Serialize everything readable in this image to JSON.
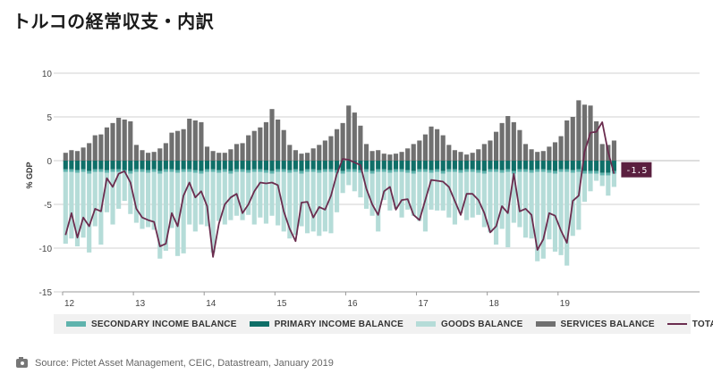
{
  "title": "トルコの経常収支・内訳",
  "source_text": "Source: Pictet Asset Management, CEIC, Datastream, January 2019",
  "colors": {
    "secondary": "#5fb3ad",
    "primary": "#0f6f68",
    "goods": "#b5dcd8",
    "services": "#707070",
    "total": "#6b2d4f",
    "grid": "#d0d0d0",
    "badge": "#5a1f3f"
  },
  "legend": [
    {
      "key": "secondary",
      "label": "SECONDARY INCOME BALANCE"
    },
    {
      "key": "primary",
      "label": "PRIMARY INCOME BALANCE"
    },
    {
      "key": "goods",
      "label": "GOODS BALANCE"
    },
    {
      "key": "services",
      "label": "SERVICES BALANCE"
    },
    {
      "key": "total",
      "label": "TOTAL"
    }
  ],
  "chart_data": {
    "type": "bar",
    "stacked": true,
    "ylabel": "% GDP",
    "ylim": [
      -15,
      10
    ],
    "yticks": [
      10,
      5,
      0,
      -5,
      -10,
      -15
    ],
    "xlim": [
      2012,
      2021
    ],
    "x_ticks": [
      {
        "value": 2012,
        "label": "12"
      },
      {
        "value": 2013,
        "label": "13"
      },
      {
        "value": 2014,
        "label": "14"
      },
      {
        "value": 2015,
        "label": "15"
      },
      {
        "value": 2016,
        "label": "16"
      },
      {
        "value": 2017,
        "label": "17"
      },
      {
        "value": 2018,
        "label": "18"
      },
      {
        "value": 2019,
        "label": "19"
      }
    ],
    "grid": true,
    "frequency": "monthly",
    "start": "2012-01",
    "annotation": {
      "label": "-1.5",
      "value": -1.5
    },
    "series": [
      {
        "key": "services",
        "name": "SERVICES BALANCE",
        "values": [
          0.9,
          1.2,
          1.1,
          1.5,
          2.0,
          2.9,
          3.0,
          3.8,
          4.3,
          4.9,
          4.7,
          4.5,
          1.8,
          1.2,
          0.9,
          1.0,
          1.4,
          2.0,
          3.2,
          3.4,
          3.6,
          4.8,
          4.6,
          4.4,
          1.6,
          1.1,
          0.9,
          0.9,
          1.3,
          1.9,
          2.0,
          2.9,
          3.4,
          3.8,
          4.4,
          5.9,
          4.7,
          3.5,
          1.8,
          1.2,
          0.8,
          0.9,
          1.4,
          1.8,
          2.3,
          2.8,
          3.6,
          4.3,
          6.3,
          5.5,
          4.0,
          1.9,
          1.1,
          1.2,
          0.8,
          0.7,
          0.8,
          1.0,
          1.4,
          1.9,
          2.3,
          3.0,
          3.9,
          3.6,
          2.9,
          1.8,
          1.2,
          1.0,
          0.7,
          0.9,
          1.3,
          1.9,
          2.3,
          3.3,
          4.3,
          5.1,
          4.4,
          3.5,
          1.9,
          1.3,
          1.0,
          1.1,
          1.6,
          2.1,
          2.8,
          4.6,
          5.0,
          6.9,
          6.4,
          6.3,
          4.5,
          1.9,
          1.8,
          2.3
        ]
      },
      {
        "key": "primary",
        "name": "PRIMARY INCOME BALANCE",
        "values": [
          -1.0,
          -1.0,
          -1.1,
          -1.0,
          -1.2,
          -1.0,
          -1.0,
          -1.1,
          -1.0,
          -1.0,
          -1.1,
          -1.2,
          -1.0,
          -1.0,
          -1.1,
          -1.0,
          -1.2,
          -1.0,
          -1.0,
          -1.1,
          -1.0,
          -1.0,
          -1.1,
          -1.2,
          -1.0,
          -1.0,
          -1.1,
          -1.0,
          -1.2,
          -1.0,
          -1.0,
          -1.1,
          -1.0,
          -1.0,
          -1.1,
          -1.2,
          -1.0,
          -1.0,
          -1.1,
          -1.0,
          -1.2,
          -1.0,
          -1.0,
          -1.1,
          -1.0,
          -1.0,
          -1.1,
          -1.2,
          -1.0,
          -1.0,
          -1.1,
          -1.0,
          -1.2,
          -1.0,
          -1.0,
          -1.1,
          -1.0,
          -1.0,
          -1.1,
          -1.2,
          -1.0,
          -1.0,
          -1.1,
          -1.0,
          -1.2,
          -1.0,
          -1.0,
          -1.1,
          -1.0,
          -1.0,
          -1.1,
          -1.2,
          -1.0,
          -1.0,
          -1.1,
          -1.0,
          -1.2,
          -1.0,
          -1.0,
          -1.1,
          -1.0,
          -1.0,
          -1.1,
          -1.2,
          -1.0,
          -1.0,
          -1.1,
          -1.0,
          -1.2,
          -1.2,
          -1.2,
          -1.4,
          -1.4,
          -1.2
        ]
      },
      {
        "key": "secondary",
        "name": "SECONDARY INCOME BALANCE",
        "values": [
          -0.3,
          -0.3,
          -0.3,
          -0.3,
          -0.3,
          -0.3,
          -0.3,
          -0.3,
          -0.3,
          -0.3,
          -0.3,
          -0.3,
          -0.3,
          -0.3,
          -0.3,
          -0.3,
          -0.3,
          -0.3,
          -0.3,
          -0.3,
          -0.3,
          -0.3,
          -0.3,
          -0.3,
          -0.3,
          -0.3,
          -0.3,
          -0.3,
          -0.3,
          -0.3,
          -0.3,
          -0.3,
          -0.3,
          -0.3,
          -0.3,
          -0.3,
          -0.3,
          -0.3,
          -0.3,
          -0.3,
          -0.3,
          -0.3,
          -0.3,
          -0.3,
          -0.3,
          -0.3,
          -0.3,
          -0.3,
          -0.3,
          -0.3,
          -0.3,
          -0.3,
          -0.3,
          -0.3,
          -0.3,
          -0.3,
          -0.3,
          -0.3,
          -0.3,
          -0.3,
          -0.3,
          -0.3,
          -0.3,
          -0.3,
          -0.3,
          -0.3,
          -0.3,
          -0.3,
          -0.3,
          -0.3,
          -0.3,
          -0.3,
          -0.3,
          -0.3,
          -0.3,
          -0.3,
          -0.3,
          -0.3,
          -0.3,
          -0.3,
          -0.3,
          -0.3,
          -0.3,
          -0.3,
          -0.3,
          -0.3,
          -0.3,
          -0.3,
          -0.3,
          -0.3,
          -0.3,
          -0.3,
          -0.3,
          -0.3
        ]
      },
      {
        "key": "goods",
        "name": "GOODS BALANCE",
        "values": [
          -8.2,
          -7.6,
          -8.4,
          -7.5,
          -9.0,
          -6.2,
          -8.3,
          -4.5,
          -6.0,
          -4.2,
          -3.2,
          -4.6,
          -5.8,
          -6.5,
          -6.2,
          -6.6,
          -9.7,
          -9.0,
          -6.4,
          -9.5,
          -9.3,
          -6.0,
          -6.7,
          -5.8,
          -6.2,
          -9.2,
          -5.5,
          -6.0,
          -5.3,
          -5.0,
          -5.5,
          -4.8,
          -6.0,
          -5.2,
          -5.8,
          -4.8,
          -6.1,
          -6.8,
          -7.5,
          -7.2,
          -6.0,
          -7.0,
          -6.8,
          -7.2,
          -6.8,
          -7.0,
          -4.5,
          -2.2,
          -1.5,
          -2.2,
          -2.8,
          -4.2,
          -4.8,
          -6.8,
          -3.2,
          -4.3,
          -4.2,
          -5.2,
          -4.2,
          -4.8,
          -5.6,
          -6.8,
          -4.2,
          -4.4,
          -4.2,
          -5.2,
          -6.0,
          -4.6,
          -5.5,
          -5.2,
          -4.8,
          -6.1,
          -6.9,
          -8.3,
          -6.4,
          -8.6,
          -5.6,
          -6.3,
          -7.5,
          -7.5,
          -10.2,
          -9.9,
          -7.6,
          -8.9,
          -9.5,
          -10.7,
          -7.2,
          -6.6,
          -3.2,
          -2.0,
          -0.8,
          -1.2,
          -2.3,
          -1.5
        ]
      },
      {
        "key": "total",
        "name": "TOTAL",
        "values": [
          -8.5,
          -6.0,
          -8.8,
          -6.5,
          -7.5,
          -5.5,
          -5.8,
          -2.0,
          -3.0,
          -1.5,
          -1.2,
          -2.5,
          -5.5,
          -6.5,
          -6.8,
          -7.0,
          -9.8,
          -9.5,
          -6.0,
          -7.5,
          -4.0,
          -2.5,
          -4.2,
          -3.5,
          -5.2,
          -11.0,
          -7.2,
          -5.0,
          -4.2,
          -3.8,
          -6.0,
          -5.0,
          -3.5,
          -2.5,
          -2.6,
          -2.5,
          -2.8,
          -5.8,
          -7.8,
          -9.2,
          -4.8,
          -4.7,
          -6.5,
          -5.3,
          -5.6,
          -4.0,
          -1.5,
          0.2,
          0.1,
          -0.2,
          -0.5,
          -3.2,
          -5.0,
          -6.2,
          -3.5,
          -3.0,
          -5.6,
          -4.5,
          -4.4,
          -6.2,
          -6.8,
          -4.5,
          -2.2,
          -2.3,
          -2.4,
          -3.0,
          -4.6,
          -6.2,
          -3.8,
          -3.8,
          -4.5,
          -6.0,
          -8.2,
          -7.5,
          -5.2,
          -6.0,
          -1.5,
          -5.8,
          -5.5,
          -6.2,
          -10.2,
          -9.0,
          -6.0,
          -6.3,
          -8.0,
          -9.4,
          -4.6,
          -4.0,
          1.0,
          3.2,
          3.3,
          4.4,
          1.0,
          -1.5
        ]
      }
    ]
  }
}
